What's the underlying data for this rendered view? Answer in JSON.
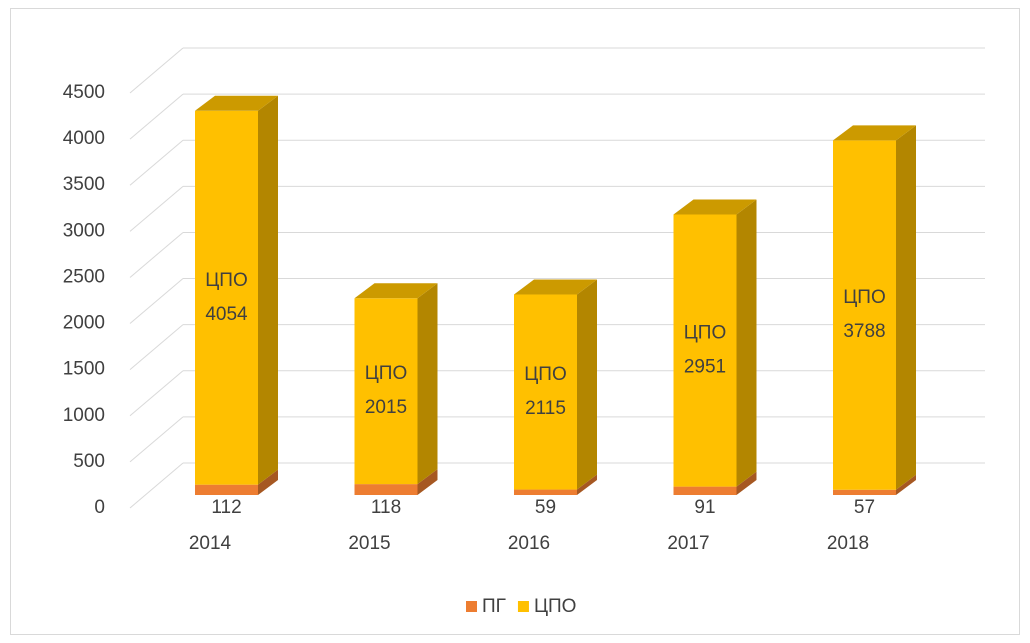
{
  "chart_data": {
    "type": "bar3d_stacked",
    "categories": [
      "2014",
      "2015",
      "2016",
      "2017",
      "2018"
    ],
    "series": [
      {
        "name": "ПГ",
        "color": "#ed7d31",
        "values": [
          112,
          118,
          59,
          91,
          57
        ]
      },
      {
        "name": "ЦПО",
        "color": "#ffc000",
        "values": [
          4054,
          2015,
          2115,
          2951,
          3788
        ]
      }
    ],
    "ylim": [
      0,
      4500
    ],
    "yticks": [
      0,
      500,
      1000,
      1500,
      2000,
      2500,
      3000,
      3500,
      4000,
      4500
    ],
    "grid": true,
    "legend": "bottom"
  }
}
